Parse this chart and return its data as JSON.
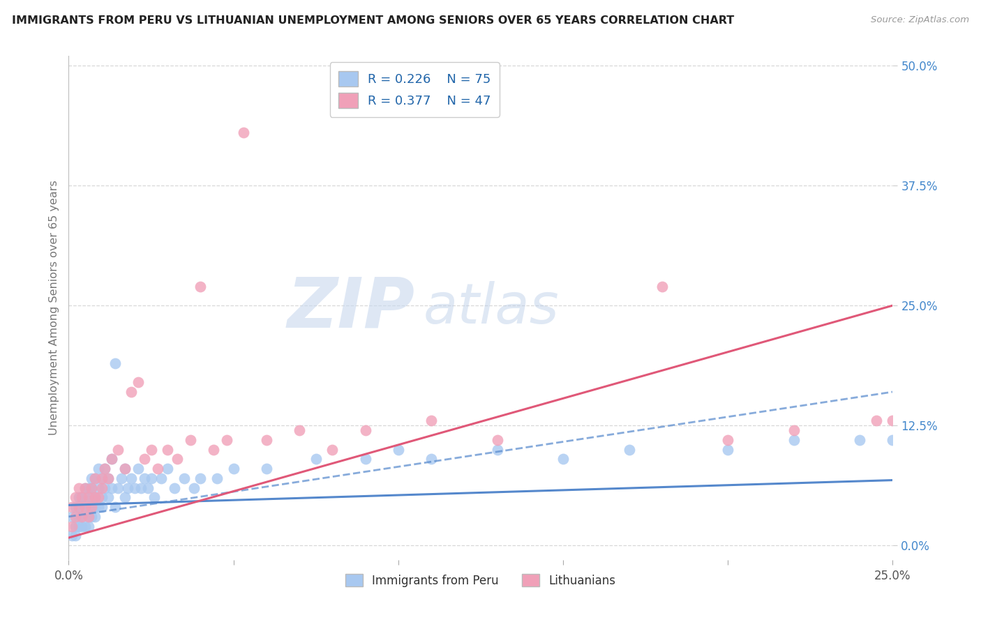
{
  "title": "IMMIGRANTS FROM PERU VS LITHUANIAN UNEMPLOYMENT AMONG SENIORS OVER 65 YEARS CORRELATION CHART",
  "source": "Source: ZipAtlas.com",
  "ylabel": "Unemployment Among Seniors over 65 years",
  "xlim": [
    0.0,
    0.25
  ],
  "ylim": [
    0.0,
    0.5
  ],
  "yticks": [
    0.0,
    0.125,
    0.25,
    0.375,
    0.5
  ],
  "ytick_labels": [
    "0.0%",
    "12.5%",
    "25.0%",
    "37.5%",
    "50.0%"
  ],
  "xticks": [
    0.0,
    0.05,
    0.1,
    0.15,
    0.2,
    0.25
  ],
  "xtick_labels": [
    "0.0%",
    "",
    "",
    "",
    "",
    "25.0%"
  ],
  "series1_label": "Immigrants from Peru",
  "series1_R": "0.226",
  "series1_N": "75",
  "series1_color": "#a8c8f0",
  "series1_line_color": "#5588cc",
  "series2_label": "Lithuanians",
  "series2_R": "0.377",
  "series2_N": "47",
  "series2_color": "#f0a0b8",
  "series2_line_color": "#e05878",
  "background_color": "#ffffff",
  "grid_color": "#d8d8d8",
  "title_color": "#222222",
  "right_ytick_color": "#4488cc",
  "series1_x": [
    0.001,
    0.001,
    0.002,
    0.002,
    0.002,
    0.003,
    0.003,
    0.003,
    0.003,
    0.004,
    0.004,
    0.004,
    0.005,
    0.005,
    0.005,
    0.005,
    0.006,
    0.006,
    0.006,
    0.006,
    0.007,
    0.007,
    0.007,
    0.007,
    0.008,
    0.008,
    0.008,
    0.008,
    0.009,
    0.009,
    0.009,
    0.01,
    0.01,
    0.01,
    0.011,
    0.011,
    0.012,
    0.012,
    0.013,
    0.013,
    0.014,
    0.014,
    0.015,
    0.016,
    0.017,
    0.017,
    0.018,
    0.019,
    0.02,
    0.021,
    0.022,
    0.023,
    0.024,
    0.025,
    0.026,
    0.028,
    0.03,
    0.032,
    0.035,
    0.038,
    0.04,
    0.045,
    0.05,
    0.06,
    0.075,
    0.09,
    0.1,
    0.11,
    0.13,
    0.15,
    0.17,
    0.2,
    0.22,
    0.24,
    0.25
  ],
  "series1_y": [
    0.01,
    0.03,
    0.02,
    0.04,
    0.01,
    0.03,
    0.05,
    0.02,
    0.04,
    0.03,
    0.05,
    0.02,
    0.04,
    0.06,
    0.02,
    0.05,
    0.03,
    0.06,
    0.04,
    0.02,
    0.05,
    0.07,
    0.03,
    0.06,
    0.04,
    0.07,
    0.03,
    0.05,
    0.06,
    0.04,
    0.08,
    0.05,
    0.07,
    0.04,
    0.06,
    0.08,
    0.05,
    0.07,
    0.06,
    0.09,
    0.04,
    0.19,
    0.06,
    0.07,
    0.05,
    0.08,
    0.06,
    0.07,
    0.06,
    0.08,
    0.06,
    0.07,
    0.06,
    0.07,
    0.05,
    0.07,
    0.08,
    0.06,
    0.07,
    0.06,
    0.07,
    0.07,
    0.08,
    0.08,
    0.09,
    0.09,
    0.1,
    0.09,
    0.1,
    0.09,
    0.1,
    0.1,
    0.11,
    0.11,
    0.11
  ],
  "series2_x": [
    0.001,
    0.001,
    0.002,
    0.002,
    0.003,
    0.003,
    0.004,
    0.004,
    0.005,
    0.005,
    0.006,
    0.006,
    0.007,
    0.007,
    0.008,
    0.008,
    0.009,
    0.01,
    0.01,
    0.011,
    0.012,
    0.013,
    0.015,
    0.017,
    0.019,
    0.021,
    0.023,
    0.025,
    0.027,
    0.03,
    0.033,
    0.037,
    0.04,
    0.044,
    0.048,
    0.053,
    0.06,
    0.07,
    0.08,
    0.09,
    0.11,
    0.13,
    0.18,
    0.2,
    0.22,
    0.245,
    0.25
  ],
  "series2_y": [
    0.02,
    0.04,
    0.03,
    0.05,
    0.04,
    0.06,
    0.03,
    0.05,
    0.04,
    0.06,
    0.03,
    0.05,
    0.04,
    0.06,
    0.05,
    0.07,
    0.05,
    0.06,
    0.07,
    0.08,
    0.07,
    0.09,
    0.1,
    0.08,
    0.16,
    0.17,
    0.09,
    0.1,
    0.08,
    0.1,
    0.09,
    0.11,
    0.27,
    0.1,
    0.11,
    0.43,
    0.11,
    0.12,
    0.1,
    0.12,
    0.13,
    0.11,
    0.27,
    0.11,
    0.12,
    0.13,
    0.13
  ],
  "trend1_x0": 0.0,
  "trend1_y0": 0.042,
  "trend1_x1": 0.25,
  "trend1_y1": 0.068,
  "trend2_x0": 0.0,
  "trend2_y0": 0.008,
  "trend2_x1": 0.25,
  "trend2_y1": 0.25
}
